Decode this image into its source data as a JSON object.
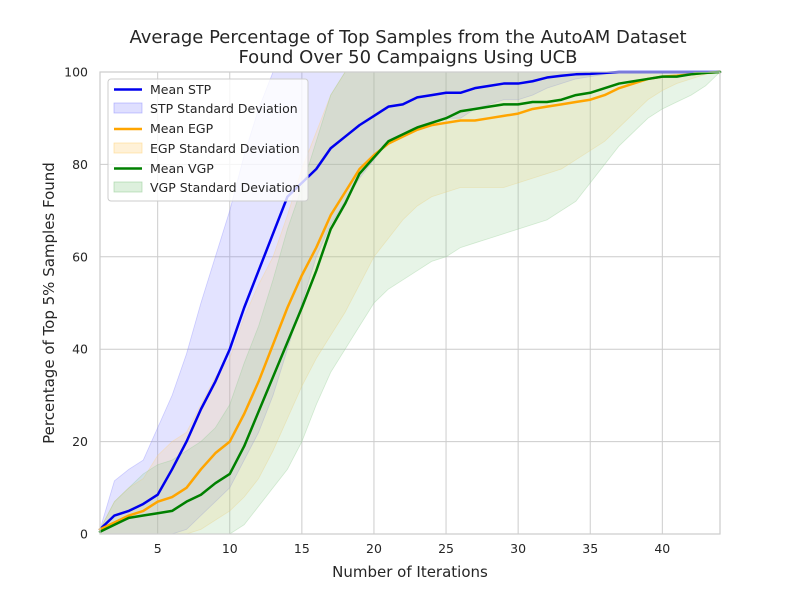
{
  "chart_data": {
    "type": "line",
    "title_line1": "Average Percentage of Top Samples from the AutoAM Dataset",
    "title_line2": "Found Over 50 Campaigns Using UCB",
    "xlabel": "Number of Iterations",
    "ylabel": "Percentage of Top 5% Samples Found",
    "xlim": [
      1,
      44
    ],
    "ylim": [
      0,
      100
    ],
    "xticks": [
      5,
      10,
      15,
      20,
      25,
      30,
      35,
      40
    ],
    "yticks": [
      0,
      20,
      40,
      60,
      80,
      100
    ],
    "grid": true,
    "legend_position": "top-left",
    "x": [
      1,
      2,
      3,
      4,
      5,
      6,
      7,
      8,
      9,
      10,
      11,
      12,
      13,
      14,
      15,
      16,
      17,
      18,
      19,
      20,
      21,
      22,
      23,
      24,
      25,
      26,
      27,
      28,
      29,
      30,
      31,
      32,
      33,
      34,
      35,
      36,
      37,
      38,
      39,
      40,
      41,
      42,
      43,
      44
    ],
    "series": [
      {
        "name": "Mean STP",
        "band_name": "STP Standard Deviation",
        "color": "#0000ee",
        "band_color": "#8080ff",
        "mean": [
          1,
          4,
          5,
          6.5,
          8.5,
          14,
          20,
          27,
          33,
          40,
          49,
          57,
          65,
          73,
          76,
          79,
          83.5,
          86,
          88.5,
          90.5,
          92.5,
          93,
          94.5,
          95,
          95.5,
          95.5,
          96.5,
          97,
          97.5,
          97.5,
          98,
          98.8,
          99.2,
          99.5,
          99.6,
          99.8,
          100,
          100,
          100,
          100,
          100,
          100,
          100,
          100
        ],
        "upper": [
          1,
          11.5,
          14,
          16,
          23,
          30,
          39,
          50,
          60,
          70,
          82,
          92,
          100,
          100,
          100,
          100,
          100,
          100,
          100,
          100,
          100,
          100,
          100,
          100,
          100,
          100,
          100,
          100,
          100,
          100,
          100,
          100,
          100,
          100,
          100,
          100,
          100,
          100,
          100,
          100,
          100,
          100,
          100,
          100
        ],
        "lower": [
          0,
          0,
          0,
          0,
          0,
          0,
          1,
          4,
          7,
          10,
          16,
          22,
          30,
          40,
          50,
          60,
          67,
          72,
          77,
          81,
          85,
          86,
          88,
          89,
          90,
          90,
          92,
          93,
          94,
          94,
          95,
          96.5,
          97.5,
          98.5,
          99,
          99.5,
          100,
          100,
          100,
          100,
          100,
          100,
          100,
          100
        ]
      },
      {
        "name": "Mean EGP",
        "band_name": "EGP Standard Deviation",
        "color": "#ffa500",
        "band_color": "#ffd27a",
        "mean": [
          1,
          2.5,
          4,
          5,
          7,
          8,
          10,
          14,
          17.5,
          20,
          26,
          33,
          41,
          49,
          56,
          62,
          69,
          74,
          79,
          82,
          84.5,
          86,
          87.5,
          88.5,
          89,
          89.5,
          89.5,
          90,
          90.5,
          91,
          92,
          92.5,
          93,
          93.5,
          94,
          95,
          96.5,
          97.5,
          98.5,
          99,
          99.2,
          99.5,
          99.8,
          100
        ],
        "upper": [
          1,
          7,
          10,
          12,
          17,
          20,
          22,
          28,
          34,
          38,
          47,
          54,
          60,
          69,
          79,
          87,
          95,
          100,
          100,
          100,
          100,
          100,
          100,
          100,
          100,
          100,
          100,
          100,
          100,
          100,
          100,
          100,
          100,
          100,
          100,
          100,
          100,
          100,
          100,
          100,
          100,
          100,
          100,
          100
        ],
        "lower": [
          0,
          0,
          0,
          0,
          0,
          0,
          0,
          1,
          3,
          5,
          8,
          12,
          18,
          25,
          32,
          38,
          43,
          48,
          54,
          60,
          64,
          68,
          71,
          73,
          74,
          75,
          75,
          75,
          75,
          76,
          77,
          78,
          79,
          81,
          83,
          85,
          88,
          91,
          94,
          96,
          97.5,
          98.5,
          99.5,
          100
        ]
      },
      {
        "name": "Mean VGP",
        "band_name": "VGP Standard Deviation",
        "color": "#008000",
        "band_color": "#90cc90",
        "mean": [
          0.5,
          2,
          3.5,
          4,
          4.5,
          5,
          7,
          8.5,
          11,
          13,
          19,
          26.5,
          34,
          41.5,
          49,
          57,
          66,
          71.5,
          78,
          81.5,
          85,
          86.5,
          88,
          89,
          90,
          91.5,
          92,
          92.5,
          93,
          93,
          93.5,
          93.5,
          94,
          95,
          95.5,
          96.5,
          97.5,
          98,
          98.5,
          99,
          99,
          99.5,
          99.8,
          100
        ],
        "upper": [
          1,
          7,
          10,
          13,
          15,
          16,
          18,
          20,
          23,
          28,
          37,
          45,
          55,
          66,
          75,
          85,
          95,
          100,
          100,
          100,
          100,
          100,
          100,
          100,
          100,
          100,
          100,
          100,
          100,
          100,
          100,
          100,
          100,
          100,
          100,
          100,
          100,
          100,
          100,
          100,
          100,
          100,
          100,
          100
        ],
        "lower": [
          0,
          0,
          0,
          0,
          0,
          0,
          0,
          0,
          0,
          0,
          2,
          6,
          10,
          14,
          20,
          28,
          35,
          40,
          45,
          50,
          53,
          55,
          57,
          59,
          60,
          62,
          63,
          64,
          65,
          66,
          67,
          68,
          70,
          72,
          76,
          80,
          84,
          87,
          90,
          92,
          93.5,
          95,
          97,
          100
        ]
      }
    ]
  }
}
